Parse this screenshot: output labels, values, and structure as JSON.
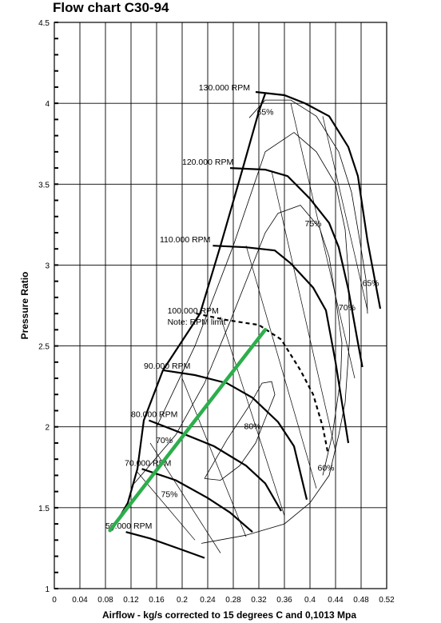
{
  "chart_data": {
    "type": "line",
    "title": "Flow chart C30-94",
    "xlabel": "Airflow - kg/s corrected to 15 degrees C and 0,1013 Mpa",
    "ylabel": "Pressure Ratio",
    "xlim": [
      0,
      0.52
    ],
    "ylim": [
      1,
      4.5
    ],
    "grid": true,
    "x_ticks": [
      "0",
      "0.04",
      "0.08",
      "0.12",
      "0.16",
      "0.2",
      "0.24",
      "0.28",
      "0.32",
      "0.36",
      "0.4",
      "0.44",
      "0.48",
      "0.52"
    ],
    "y_ticks": [
      "1",
      "1.5",
      "2",
      "2.5",
      "3",
      "3.5",
      "4",
      "4.5"
    ],
    "speed_lines": [
      {
        "label": "50.000 RPM",
        "label_at": [
          0.08,
          1.37
        ],
        "dashed": false,
        "points": [
          [
            0.112,
            1.35
          ],
          [
            0.15,
            1.31
          ],
          [
            0.2,
            1.24
          ],
          [
            0.235,
            1.19
          ]
        ]
      },
      {
        "label": "70.000 RPM",
        "label_at": [
          0.11,
          1.76
        ],
        "dashed": false,
        "points": [
          [
            0.137,
            1.74
          ],
          [
            0.19,
            1.67
          ],
          [
            0.24,
            1.56
          ],
          [
            0.275,
            1.47
          ],
          [
            0.31,
            1.35
          ]
        ]
      },
      {
        "label": "80.000 RPM",
        "label_at": [
          0.12,
          2.06
        ],
        "dashed": false,
        "points": [
          [
            0.148,
            2.04
          ],
          [
            0.2,
            1.96
          ],
          [
            0.25,
            1.88
          ],
          [
            0.3,
            1.76
          ],
          [
            0.33,
            1.65
          ],
          [
            0.355,
            1.48
          ]
        ]
      },
      {
        "label": "90.000 RPM",
        "label_at": [
          0.14,
          2.36
        ],
        "dashed": false,
        "points": [
          [
            0.17,
            2.35
          ],
          [
            0.22,
            2.32
          ],
          [
            0.27,
            2.27
          ],
          [
            0.31,
            2.18
          ],
          [
            0.35,
            2.03
          ],
          [
            0.375,
            1.88
          ],
          [
            0.395,
            1.55
          ]
        ]
      },
      {
        "label": "100.000 RPM",
        "label_at": [
          0.177,
          2.7
        ],
        "note": "Note: RPM limit",
        "dashed": true,
        "points": [
          [
            0.222,
            2.7
          ],
          [
            0.27,
            2.66
          ],
          [
            0.32,
            2.63
          ],
          [
            0.355,
            2.54
          ],
          [
            0.385,
            2.35
          ],
          [
            0.405,
            2.2
          ],
          [
            0.42,
            2.0
          ],
          [
            0.428,
            1.84
          ]
        ]
      },
      {
        "label": "110.000 RPM",
        "label_at": [
          0.165,
          3.14
        ],
        "dashed": false,
        "points": [
          [
            0.248,
            3.12
          ],
          [
            0.3,
            3.11
          ],
          [
            0.345,
            3.09
          ],
          [
            0.37,
            3.01
          ],
          [
            0.405,
            2.86
          ],
          [
            0.425,
            2.72
          ],
          [
            0.44,
            2.4
          ],
          [
            0.46,
            1.9
          ]
        ]
      },
      {
        "label": "120.000 RPM",
        "label_at": [
          0.2,
          3.62
        ],
        "dashed": false,
        "points": [
          [
            0.275,
            3.6
          ],
          [
            0.33,
            3.59
          ],
          [
            0.365,
            3.55
          ],
          [
            0.4,
            3.41
          ],
          [
            0.43,
            3.26
          ],
          [
            0.445,
            3.11
          ],
          [
            0.46,
            2.85
          ],
          [
            0.475,
            2.52
          ],
          [
            0.482,
            2.37
          ]
        ]
      },
      {
        "label": "130.000 RPM",
        "label_at": [
          0.226,
          4.08
        ],
        "dashed": false,
        "points": [
          [
            0.315,
            4.07
          ],
          [
            0.36,
            4.05
          ],
          [
            0.392,
            4.0
          ],
          [
            0.43,
            3.92
          ],
          [
            0.46,
            3.73
          ],
          [
            0.475,
            3.55
          ],
          [
            0.49,
            3.15
          ],
          [
            0.5,
            2.94
          ],
          [
            0.51,
            2.73
          ]
        ]
      }
    ],
    "surge_line": {
      "points": [
        [
          0.09,
          1.36
        ],
        [
          0.115,
          1.53
        ],
        [
          0.13,
          1.74
        ],
        [
          0.14,
          2.04
        ],
        [
          0.17,
          2.35
        ],
        [
          0.228,
          2.7
        ],
        [
          0.26,
          3.12
        ],
        [
          0.295,
          3.6
        ],
        [
          0.32,
          3.95
        ],
        [
          0.33,
          4.06
        ]
      ]
    },
    "operating_line": {
      "color": "#2dae4c",
      "points": [
        [
          0.087,
          1.36
        ],
        [
          0.33,
          2.6
        ]
      ]
    },
    "efficiency_islands": [
      {
        "label": "80%",
        "label_at": [
          0.31,
          1.985
        ],
        "points": [
          [
            0.235,
            1.68
          ],
          [
            0.27,
            1.92
          ],
          [
            0.305,
            2.13
          ],
          [
            0.325,
            2.27
          ],
          [
            0.34,
            2.28
          ],
          [
            0.345,
            2.2
          ],
          [
            0.33,
            2.05
          ],
          [
            0.315,
            1.9
          ],
          [
            0.29,
            1.76
          ],
          [
            0.26,
            1.67
          ],
          [
            0.235,
            1.68
          ]
        ]
      },
      {
        "label": "75%",
        "label_at": [
          0.405,
          3.24
        ],
        "points": [
          [
            0.125,
            1.65
          ],
          [
            0.19,
            1.95
          ],
          [
            0.235,
            2.27
          ],
          [
            0.275,
            2.65
          ],
          [
            0.33,
            3.2
          ],
          [
            0.35,
            3.32
          ],
          [
            0.385,
            3.37
          ],
          [
            0.415,
            3.23
          ],
          [
            0.43,
            3.05
          ],
          [
            0.44,
            2.8
          ],
          [
            0.45,
            2.52
          ],
          [
            0.448,
            2.3
          ],
          [
            0.435,
            1.95
          ],
          [
            0.42,
            1.7
          ]
        ]
      },
      {
        "label": "70%",
        "label_at": [
          0.458,
          2.72
        ],
        "points": [
          [
            0.16,
            2.0
          ],
          [
            0.22,
            2.5
          ],
          [
            0.28,
            3.12
          ],
          [
            0.33,
            3.7
          ],
          [
            0.375,
            3.82
          ],
          [
            0.41,
            3.7
          ],
          [
            0.44,
            3.5
          ],
          [
            0.455,
            3.22
          ],
          [
            0.46,
            2.95
          ],
          [
            0.462,
            2.55
          ],
          [
            0.455,
            2.15
          ],
          [
            0.445,
            1.95
          ],
          [
            0.43,
            1.7
          ],
          [
            0.4,
            1.53
          ],
          [
            0.36,
            1.4
          ],
          [
            0.3,
            1.33
          ],
          [
            0.23,
            1.28
          ]
        ]
      },
      {
        "label": "65%",
        "label_at": [
          0.495,
          2.87
        ],
        "points": [
          [
            0.305,
            3.91
          ],
          [
            0.33,
            4.02
          ],
          [
            0.37,
            4.02
          ],
          [
            0.41,
            3.92
          ],
          [
            0.445,
            3.7
          ],
          [
            0.465,
            3.45
          ],
          [
            0.478,
            3.15
          ],
          [
            0.488,
            2.9
          ],
          [
            0.49,
            2.7
          ]
        ]
      },
      {
        "label": "70%",
        "label_at": [
          0.172,
          1.9
        ]
      },
      {
        "label": "75%",
        "label_at": [
          0.18,
          1.565
        ]
      },
      {
        "label": "65%",
        "label_at": [
          0.33,
          3.93
        ]
      },
      {
        "label": "60%",
        "label_at": [
          0.425,
          1.73
        ]
      }
    ]
  }
}
